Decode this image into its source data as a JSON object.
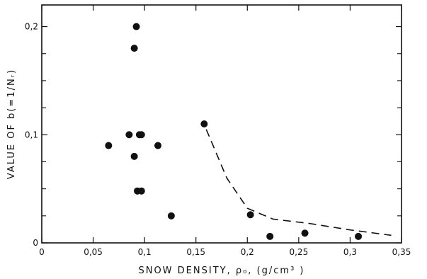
{
  "chart_data": {
    "type": "scatter",
    "xlabel": "SNOW DENSITY, ρ₀, (g/cm³ )",
    "ylabel": "VALUE OF b(=1/Nᵣ)",
    "xlim": [
      0,
      0.35
    ],
    "ylim": [
      0,
      0.22
    ],
    "x_ticks": [
      0,
      0.05,
      0.1,
      0.15,
      0.2,
      0.25,
      0.3,
      0.35
    ],
    "x_tick_labels": [
      "0",
      "0,05",
      "0,1",
      "0,15",
      "0,2",
      "0,25",
      "0,3",
      "0,35"
    ],
    "y_ticks": [
      0,
      0.1,
      0.2
    ],
    "y_tick_labels": [
      "0",
      "0,1",
      "0,2"
    ],
    "y_minor_ticks": [
      0.025,
      0.05,
      0.075,
      0.125,
      0.15,
      0.175
    ],
    "grid": false,
    "series": [
      {
        "style": "markers",
        "x": [
          0.065,
          0.085,
          0.09,
          0.09,
          0.092,
          0.093,
          0.095,
          0.097,
          0.097,
          0.113,
          0.126,
          0.158,
          0.203,
          0.222,
          0.256,
          0.308
        ],
        "y": [
          0.09,
          0.1,
          0.18,
          0.08,
          0.2,
          0.048,
          0.1,
          0.1,
          0.048,
          0.09,
          0.025,
          0.11,
          0.026,
          0.006,
          0.009,
          0.006
        ]
      },
      {
        "style": "dashed-line",
        "x": [
          0.16,
          0.18,
          0.2,
          0.225,
          0.26,
          0.3,
          0.34
        ],
        "y": [
          0.105,
          0.06,
          0.032,
          0.022,
          0.018,
          0.012,
          0.007
        ]
      }
    ]
  }
}
